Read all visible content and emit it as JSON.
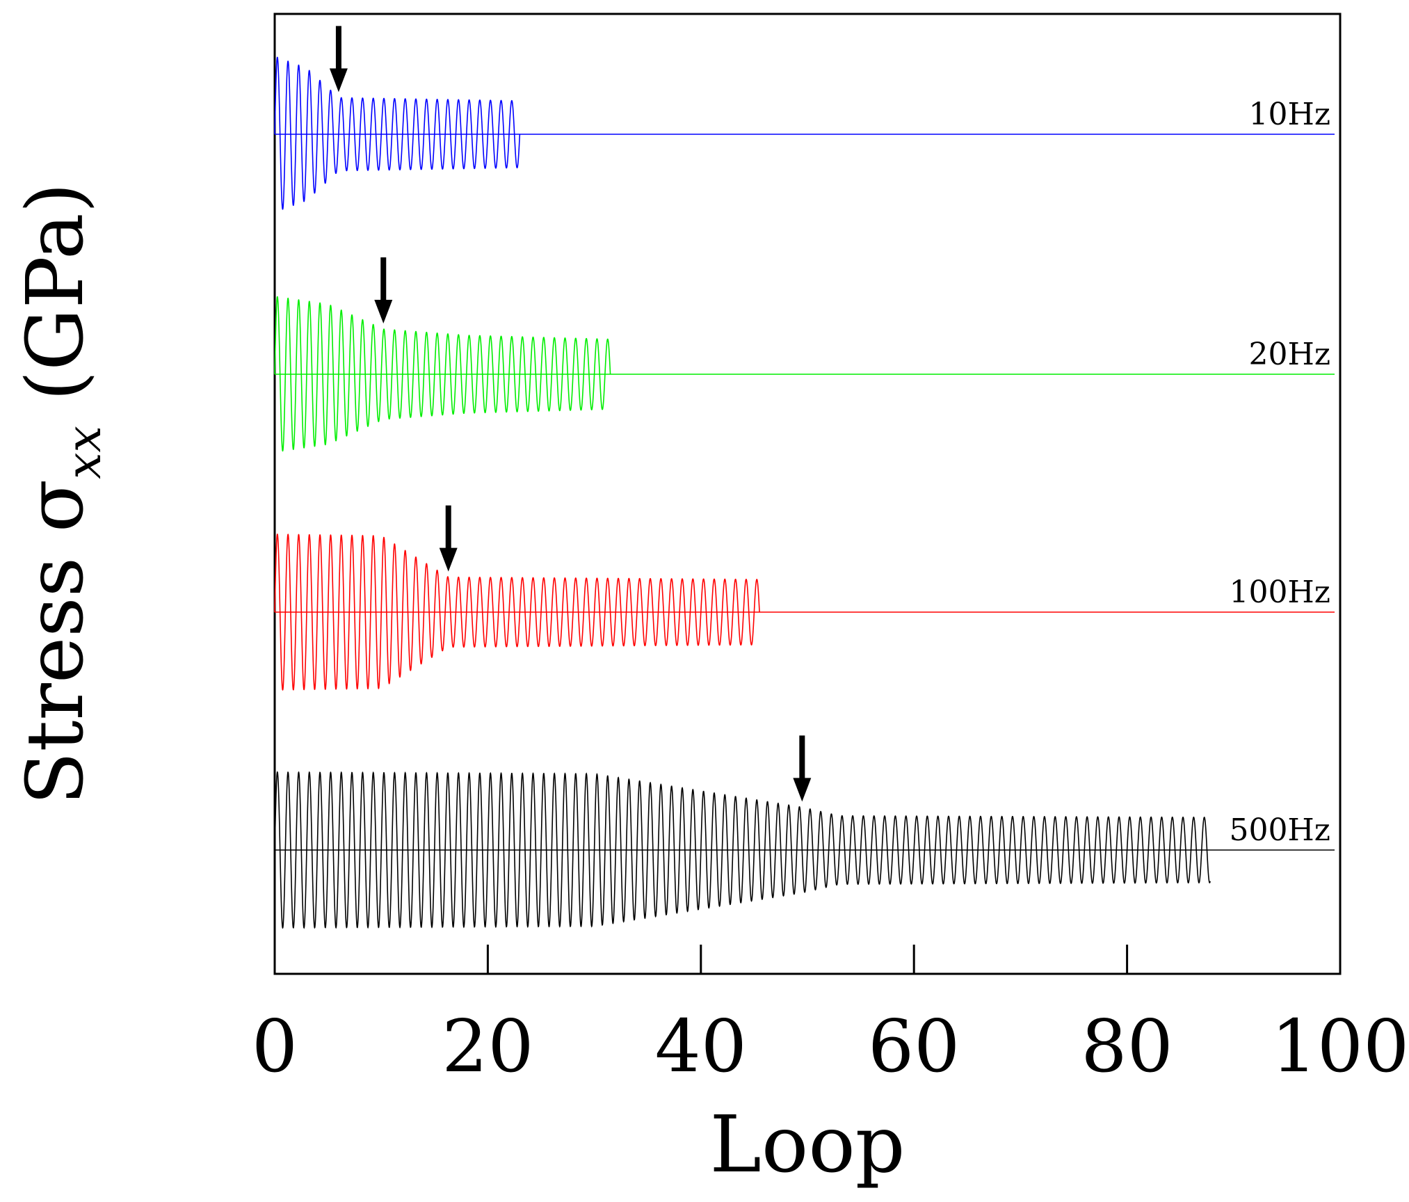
{
  "chart_data": {
    "type": "line",
    "title": "",
    "xlabel": "Loop",
    "ylabel": {
      "prefix": "Stress ",
      "symbol": "σ",
      "subscript": "xx",
      "suffix": " (GPa)"
    },
    "xlim": [
      0,
      100
    ],
    "xticks": [
      0,
      20,
      40,
      60,
      80,
      100
    ],
    "xtick_labels": [
      "0",
      "20",
      "40",
      "60",
      "80",
      "100"
    ],
    "y_ticks_shown": false,
    "grid": false,
    "note": "curves vertically offset; amplitudes in relative units (max = 1.0)",
    "series": [
      {
        "name": "10Hz",
        "label": "10Hz",
        "color": "#0000ff",
        "oscillation_end_loop": 23,
        "arrow_loop": 6,
        "amplitude_profile": [
          [
            0,
            1.0
          ],
          [
            3,
            0.85
          ],
          [
            6,
            0.47
          ],
          [
            23,
            0.43
          ]
        ]
      },
      {
        "name": "20Hz",
        "label": "20Hz",
        "color": "#00ee00",
        "oscillation_end_loop": 31.5,
        "arrow_loop": 10.2,
        "amplitude_profile": [
          [
            0,
            1.0
          ],
          [
            5,
            0.9
          ],
          [
            10.2,
            0.58
          ],
          [
            18,
            0.5
          ],
          [
            31.5,
            0.45
          ]
        ]
      },
      {
        "name": "100Hz",
        "label": "100Hz",
        "color": "#ff0000",
        "oscillation_end_loop": 45.5,
        "arrow_loop": 16.3,
        "amplitude_profile": [
          [
            0,
            1.0
          ],
          [
            10,
            0.98
          ],
          [
            16.3,
            0.45
          ],
          [
            45.5,
            0.42
          ]
        ]
      },
      {
        "name": "500Hz",
        "label": "500Hz",
        "color": "#000000",
        "oscillation_end_loop": 87.8,
        "arrow_loop": 49.5,
        "amplitude_profile": [
          [
            0,
            1.0
          ],
          [
            30,
            0.98
          ],
          [
            49.5,
            0.55
          ],
          [
            53,
            0.44
          ],
          [
            87.8,
            0.42
          ]
        ]
      }
    ]
  }
}
